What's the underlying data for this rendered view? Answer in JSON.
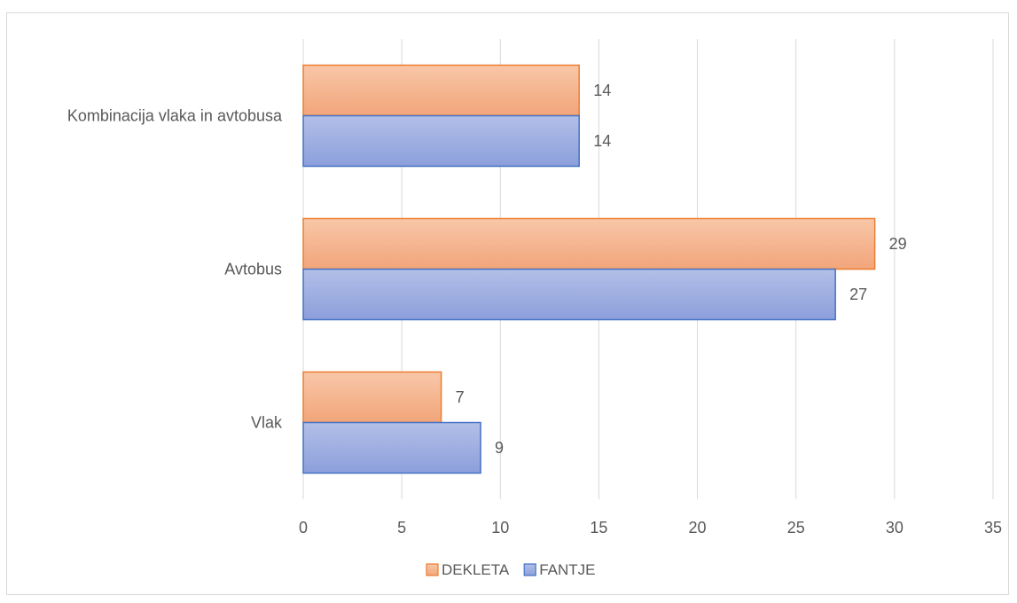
{
  "chart_data": {
    "type": "bar",
    "orientation": "horizontal",
    "categories": [
      "Kombinacija vlaka in avtobusa",
      "Avtobus",
      "Vlak"
    ],
    "series": [
      {
        "name": "DEKLETA",
        "values": [
          14,
          29,
          7
        ],
        "color": "#f4b183",
        "border": "#ed7d31"
      },
      {
        "name": "FANTJE",
        "values": [
          14,
          27,
          9
        ],
        "color": "#9dabdf",
        "border": "#4472c4"
      }
    ],
    "xlim": [
      0,
      35
    ],
    "xticks": [
      "0",
      "5",
      "10",
      "15",
      "20",
      "25",
      "30",
      "35"
    ],
    "grid": true,
    "legend_position": "bottom",
    "title": "",
    "xlabel": "",
    "ylabel": ""
  }
}
